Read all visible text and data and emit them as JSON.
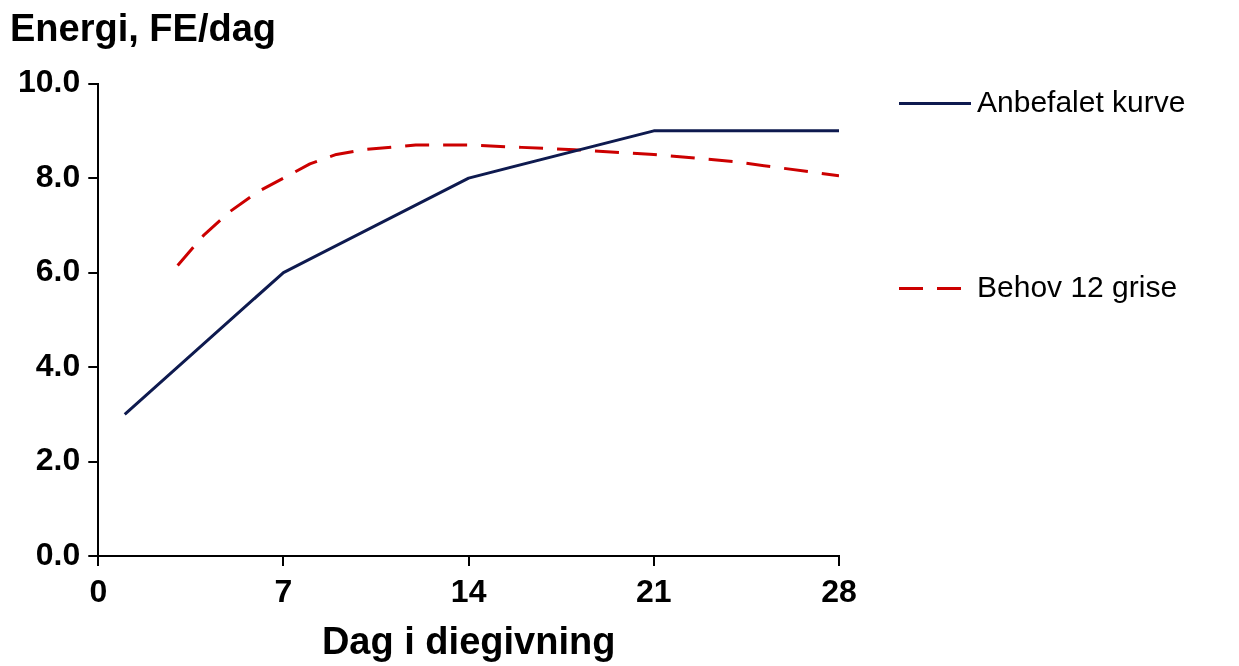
{
  "chart_data": {
    "type": "line",
    "ylabel": "Energi, FE/dag",
    "xlabel": "Dag i diegivning",
    "xlim": [
      0,
      28
    ],
    "xticks": [
      0,
      7,
      14,
      21,
      28
    ],
    "ylim": [
      0,
      10
    ],
    "yticks": [
      {
        "value": 0,
        "label": "0.0"
      },
      {
        "value": 2,
        "label": "2.0"
      },
      {
        "value": 4,
        "label": "4.0"
      },
      {
        "value": 6,
        "label": "6.0"
      },
      {
        "value": 8,
        "label": "8.0"
      },
      {
        "value": 10,
        "label": "10.0"
      }
    ],
    "grid": false,
    "legend": "right",
    "marker": "none",
    "series": [
      {
        "name": "Anbefalet kurve",
        "color": "#0e1a4f",
        "line_style": "solid",
        "x": [
          1,
          7,
          14,
          21,
          28
        ],
        "values": [
          3.0,
          6.0,
          8.0,
          9.0,
          9.0
        ]
      },
      {
        "name": "Behov 12 grise",
        "color": "#cc0000",
        "line_style": "dashed",
        "x": [
          3,
          4,
          5,
          6,
          7,
          8,
          9,
          10,
          12,
          14,
          16,
          18,
          21,
          24,
          28
        ],
        "values": [
          6.15,
          6.8,
          7.3,
          7.7,
          8.0,
          8.3,
          8.5,
          8.6,
          8.7,
          8.7,
          8.65,
          8.6,
          8.5,
          8.35,
          8.05
        ]
      }
    ]
  }
}
